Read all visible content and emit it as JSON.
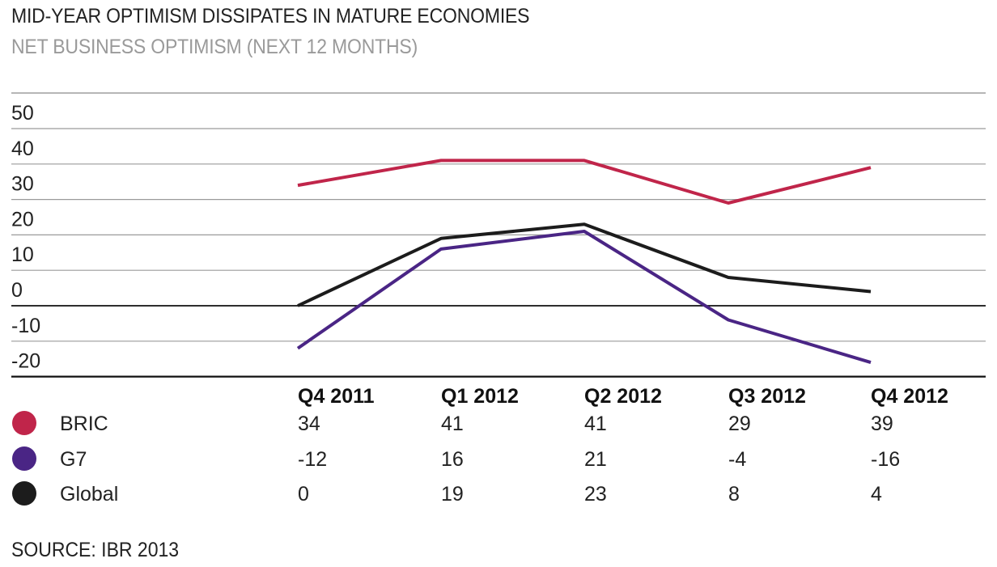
{
  "title": "MID-YEAR OPTIMISM DISSIPATES IN MATURE ECONOMIES",
  "subtitle": "NET BUSINESS OPTIMISM (NEXT 12 MONTHS)",
  "source": "SOURCE: IBR 2013",
  "chart_data": {
    "type": "line",
    "categories": [
      "Q4 2011",
      "Q1 2012",
      "Q2 2012",
      "Q3 2012",
      "Q4 2012"
    ],
    "yticks": [
      "50",
      "40",
      "30",
      "20",
      "10",
      "0",
      "-10",
      "-20"
    ],
    "ylim": [
      -20,
      50
    ],
    "grid": true,
    "series": [
      {
        "name": "BRIC",
        "values": [
          34,
          41,
          41,
          29,
          39
        ],
        "color": "#c0254a"
      },
      {
        "name": "G7",
        "values": [
          -12,
          16,
          21,
          -4,
          -16
        ],
        "color": "#4a2585"
      },
      {
        "name": "Global",
        "values": [
          0,
          19,
          23,
          8,
          4
        ],
        "color": "#1c1c1c"
      }
    ],
    "table_values": [
      [
        "34",
        "41",
        "41",
        "29",
        "39"
      ],
      [
        "-12",
        "16",
        "21",
        "-4",
        "-16"
      ],
      [
        "0",
        "19",
        "23",
        "8",
        "4"
      ]
    ]
  }
}
